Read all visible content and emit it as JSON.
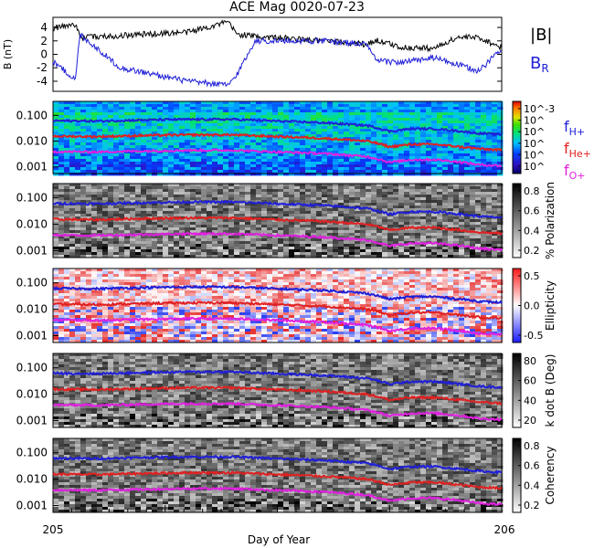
{
  "title": "ACE Mag 0020-07-23",
  "x_axis": {
    "label": "Day of Year",
    "start_label": "205",
    "end_label": "206"
  },
  "legend": {
    "B_mag": {
      "text": "|B|",
      "color": "#000000"
    },
    "B_R": {
      "text": "B",
      "sub": "R",
      "color": "#1f1fd8"
    },
    "f_H": {
      "text": "f",
      "sub": "H+",
      "color": "#1f1fd8"
    },
    "f_He": {
      "text": "f",
      "sub": "He+",
      "color": "#e02020"
    },
    "f_O": {
      "text": "f",
      "sub": "O+",
      "color": "#e020e0"
    }
  },
  "colors": {
    "blue": "#1f1fd8",
    "red": "#e02020",
    "magenta": "#e020e0",
    "black": "#000000"
  },
  "chart_data": [
    {
      "type": "line",
      "panel": "magnetic field",
      "ylabel": "B (nT)",
      "yticks": [
        "4",
        "2",
        "0",
        "-2",
        "-4"
      ],
      "ylim": [
        -5.5,
        5.5
      ],
      "x_fraction": [
        0.0,
        0.05,
        0.06,
        0.15,
        0.3,
        0.39,
        0.41,
        0.45,
        0.6,
        0.7,
        0.72,
        0.78,
        0.85,
        0.9,
        0.95,
        1.0
      ],
      "series": [
        {
          "name": "|B|",
          "values": [
            3.9,
            4.5,
            2.5,
            2.8,
            3.3,
            4.8,
            3.0,
            2.7,
            2.0,
            1.5,
            2.1,
            1.0,
            0.9,
            2.5,
            2.5,
            1.0
          ]
        },
        {
          "name": "B_R",
          "values": [
            -1.0,
            -3.8,
            3.0,
            -2.0,
            -4.0,
            -4.6,
            -3.0,
            2.0,
            2.0,
            1.5,
            -1.0,
            -1.2,
            -0.5,
            -1.5,
            -2.5,
            1.0
          ]
        }
      ]
    },
    {
      "type": "heatmap",
      "panel": "power spectral density",
      "yscale": "log",
      "yticks": [
        "0.100",
        "0.010",
        "0.001"
      ],
      "colorbar_ticks": [
        "10^-3",
        "10^",
        "10^",
        "10^",
        "10^",
        "10^"
      ],
      "x_fraction": [
        0.0,
        0.1,
        0.2,
        0.3,
        0.4,
        0.5,
        0.6,
        0.7,
        0.75,
        0.8,
        0.85,
        0.9,
        0.95,
        1.0
      ],
      "series": [
        {
          "name": "f_H+",
          "values": [
            0.062,
            0.06,
            0.066,
            0.07,
            0.07,
            0.06,
            0.052,
            0.04,
            0.024,
            0.03,
            0.03,
            0.025,
            0.02,
            0.018
          ]
        },
        {
          "name": "f_He+",
          "values": [
            0.0155,
            0.015,
            0.0165,
            0.0175,
            0.0175,
            0.015,
            0.013,
            0.01,
            0.006,
            0.0075,
            0.0075,
            0.0062,
            0.005,
            0.0045
          ]
        },
        {
          "name": "f_O+",
          "values": [
            0.0039,
            0.0038,
            0.0041,
            0.0044,
            0.0044,
            0.0038,
            0.0033,
            0.0025,
            0.0015,
            0.0019,
            0.0019,
            0.0016,
            0.0012,
            0.0011
          ]
        }
      ]
    },
    {
      "type": "heatmap",
      "panel": "polarization",
      "yscale": "log",
      "yticks": [
        "0.100",
        "0.010",
        "0.001"
      ],
      "colorbar_label": "% Polarization",
      "colorbar_ticks": [
        "0.8",
        "0.6",
        "0.4",
        "0.2"
      ]
    },
    {
      "type": "heatmap",
      "panel": "ellipticity",
      "yscale": "log",
      "yticks": [
        "0.100",
        "0.010",
        "0.001"
      ],
      "colorbar_label": "Ellipticity",
      "colorbar_ticks": [
        "0.5",
        "0.0",
        "-0.5"
      ]
    },
    {
      "type": "heatmap",
      "panel": "wave normal angle",
      "yscale": "log",
      "yticks": [
        "0.100",
        "0.010",
        "0.001"
      ],
      "colorbar_label": "k dot B (Deg)",
      "colorbar_ticks": [
        "80",
        "60",
        "40",
        "20"
      ]
    },
    {
      "type": "heatmap",
      "panel": "coherency",
      "yscale": "log",
      "yticks": [
        "0.100",
        "0.010",
        "0.001"
      ],
      "colorbar_label": "Coherency",
      "colorbar_ticks": [
        "0.8",
        "0.6",
        "0.4",
        "0.2"
      ]
    }
  ]
}
